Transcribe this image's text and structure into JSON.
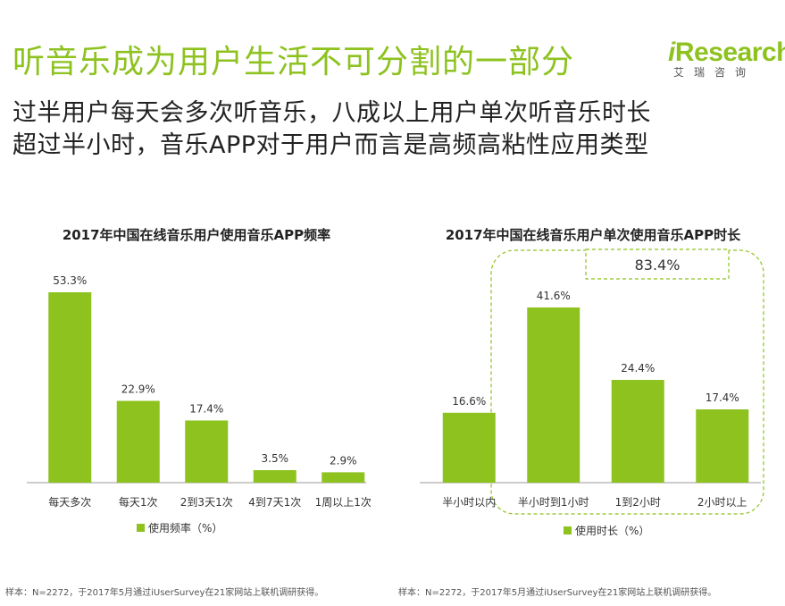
{
  "header": {
    "title": "听音乐成为用户生活不可分割的一部分",
    "subtitle_line1": "过半用户每天会多次听音乐，八成以上用户单次听音乐时长",
    "subtitle_line2": "超过半小时，音乐APP对于用户而言是高频高粘性应用类型"
  },
  "logo": {
    "i": "i",
    "name": "Research",
    "cn": "艾瑞咨询"
  },
  "colors": {
    "bar": "#8dc21f",
    "title": "#8dc21f",
    "box": "#8dc21f"
  },
  "chart_data": [
    {
      "type": "bar",
      "title": "2017年中国在线音乐用户使用音乐APP频率",
      "categories": [
        "每天多次",
        "每天1次",
        "2到3天1次",
        "4到7天1次",
        "1周以上1次"
      ],
      "values": [
        53.3,
        22.9,
        17.4,
        3.5,
        2.9
      ],
      "value_labels": [
        "53.3%",
        "22.9%",
        "17.4%",
        "3.5%",
        "2.9%"
      ],
      "legend": "使用频率（%）",
      "ylim": [
        0,
        53.3
      ],
      "footnote": "样本：N=2272，于2017年5月通过iUserSurvey在21家网站上联机调研获得。"
    },
    {
      "type": "bar",
      "title": "2017年中国在线音乐用户单次使用音乐APP时长",
      "categories": [
        "半小时以内",
        "半小时到1小时",
        "1到2小时",
        "2小时以上"
      ],
      "values": [
        16.6,
        41.6,
        24.4,
        17.4
      ],
      "value_labels": [
        "16.6%",
        "41.6%",
        "24.4%",
        "17.4%"
      ],
      "legend": "使用时长（%）",
      "ylim": [
        0,
        41.6
      ],
      "annotation": "83.4%",
      "footnote": "样本：N=2272，于2017年5月通过iUserSurvey在21家网站上联机调研获得。"
    }
  ]
}
